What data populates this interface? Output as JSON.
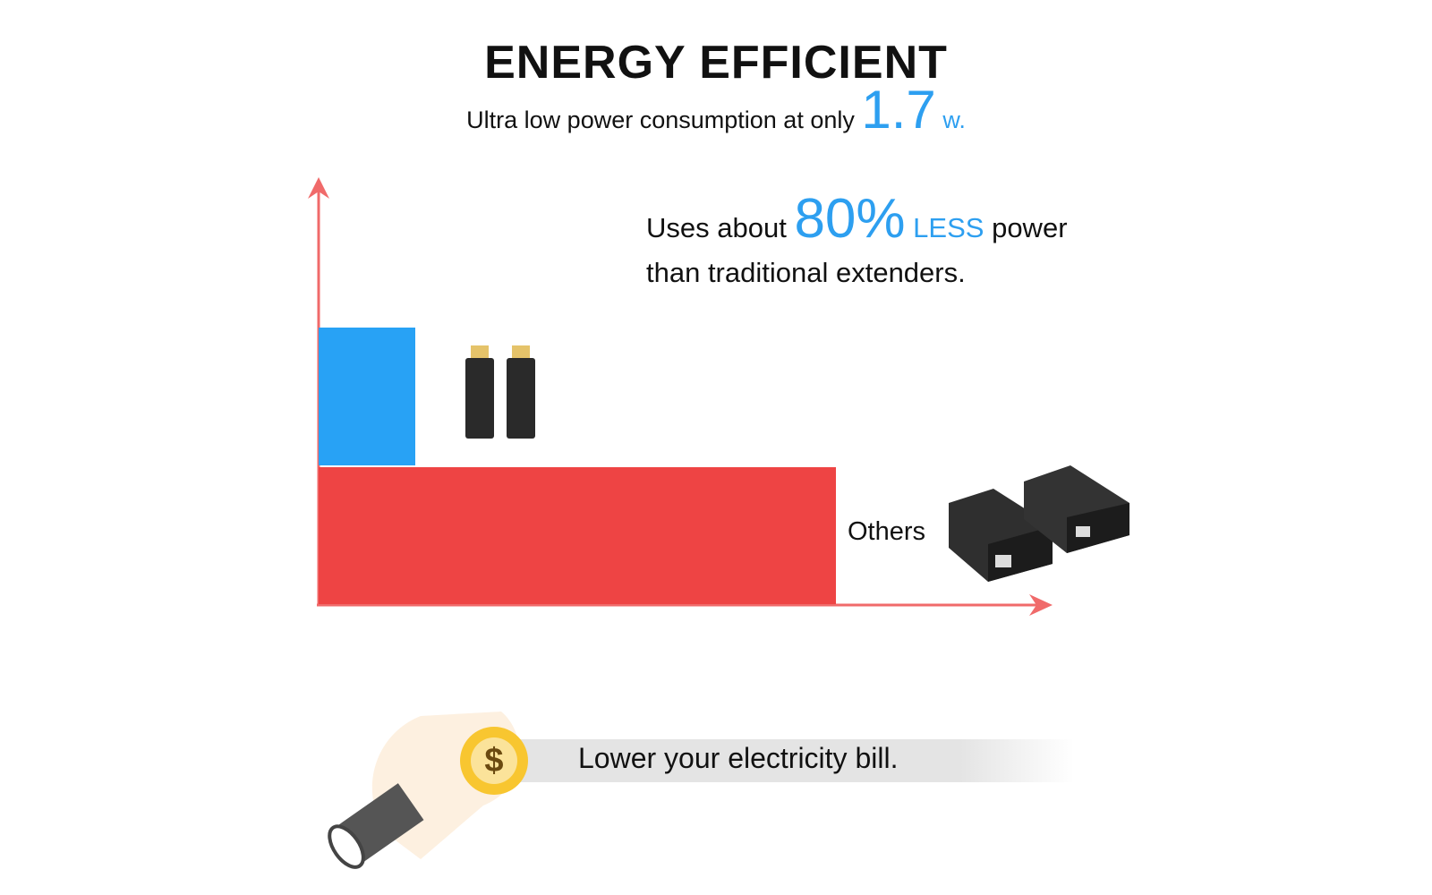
{
  "header": {
    "title": "ENERGY EFFICIENT",
    "subtitle_prefix": "Ultra low power consumption at only",
    "power_value": "1.7",
    "power_unit": "w."
  },
  "claim": {
    "prefix": "Uses about",
    "percent": "80%",
    "less": "LESS",
    "suffix": "power",
    "line2": "than traditional extenders."
  },
  "comparison": {
    "others_label": "Others"
  },
  "footer": {
    "text": "Lower your electricity bill.",
    "coin_symbol": "$"
  },
  "colors": {
    "accent_blue": "#2d9ff0",
    "bar_red": "#ee4444",
    "axis": "#f06a6a",
    "coin": "#f8c630"
  }
}
